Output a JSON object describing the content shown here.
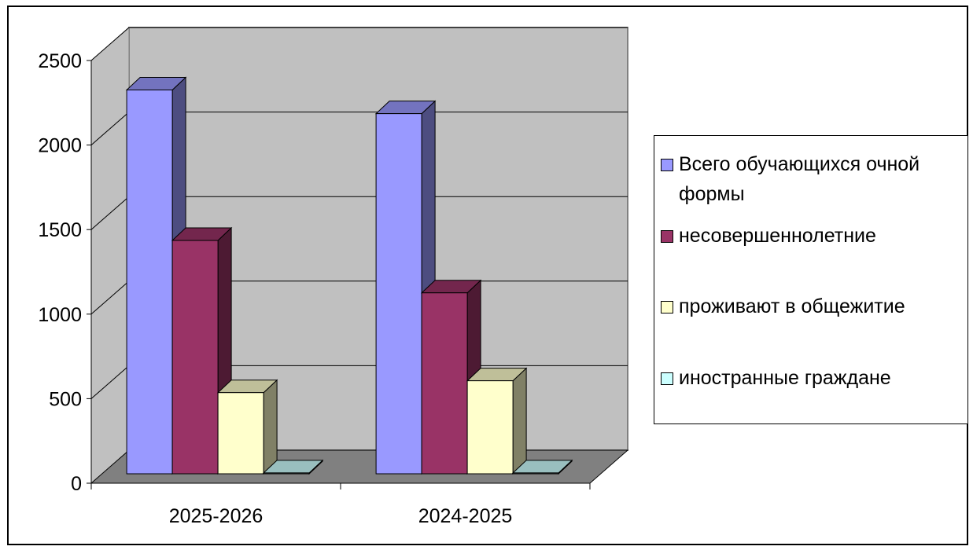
{
  "chart_data": {
    "type": "bar",
    "categories": [
      "2025-2026",
      "2024-2025"
    ],
    "series": [
      {
        "name": "Всего обучающихся очной формы",
        "values": [
          2270,
          2130
        ],
        "color": "#9999ff"
      },
      {
        "name": "несовершеннолетние",
        "values": [
          1380,
          1070
        ],
        "color": "#993366"
      },
      {
        "name": "проживают в общежитие",
        "values": [
          480,
          550
        ],
        "color": "#ffffcc"
      },
      {
        "name": "иностранные граждане",
        "values": [
          5,
          5
        ],
        "color": "#ccffff"
      }
    ],
    "y_ticks": [
      "0",
      "500",
      "1000",
      "1500",
      "2000",
      "2500"
    ],
    "ylim": [
      0,
      2500
    ],
    "grid": true,
    "legend_position": "right",
    "style": "3d-clustered-column"
  }
}
